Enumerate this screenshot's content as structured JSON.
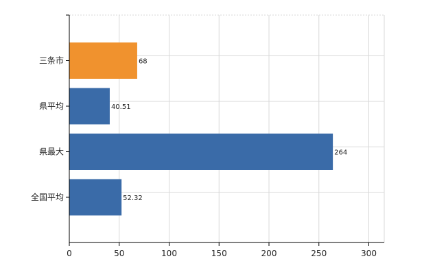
{
  "chart_data": {
    "type": "bar",
    "orientation": "horizontal",
    "categories": [
      "三条市",
      "県平均",
      "県最大",
      "全国平均"
    ],
    "values": [
      68,
      40.51,
      264,
      52.32
    ],
    "value_labels": [
      "68",
      "40.51",
      "264",
      "52.32"
    ],
    "bar_colors": [
      "#F0922E",
      "#3A6BA8",
      "#3A6BA8",
      "#3A6BA8"
    ],
    "xlim": [
      0,
      320
    ],
    "x_ticks": [
      0,
      50,
      100,
      150,
      200,
      250,
      300
    ],
    "x_tick_labels": [
      "0",
      "50",
      "100",
      "150",
      "200",
      "250",
      "300"
    ],
    "grid": true,
    "title": "",
    "xlabel": "",
    "ylabel": ""
  }
}
